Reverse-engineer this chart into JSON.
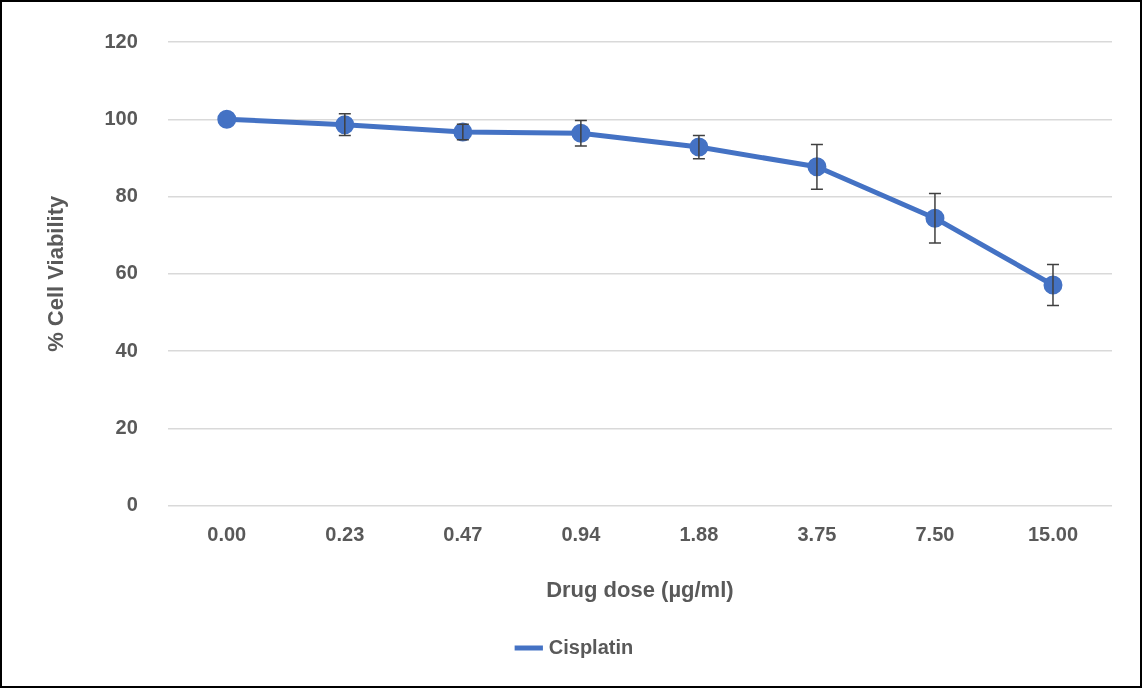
{
  "chart_data": {
    "type": "line",
    "xlabel": "Drug dose (µg/ml)",
    "ylabel": "% Cell Viability",
    "categories": [
      "0.00",
      "0.23",
      "0.47",
      "0.94",
      "1.88",
      "3.75",
      "7.50",
      "15.00"
    ],
    "series": [
      {
        "name": "Cisplatin",
        "color": "#4472c4",
        "values": [
          100,
          98.6,
          96.7,
          96.4,
          92.8,
          87.7,
          74.4,
          57.1
        ],
        "errors": [
          null,
          2.8,
          2,
          3.3,
          3,
          5.8,
          6.4,
          5.3
        ]
      }
    ],
    "ylim": [
      0,
      120
    ],
    "yticks": [
      0,
      20,
      40,
      60,
      80,
      100,
      120
    ],
    "grid": "y",
    "legend": "bottom",
    "marker": "circle",
    "line_style": "solid"
  }
}
